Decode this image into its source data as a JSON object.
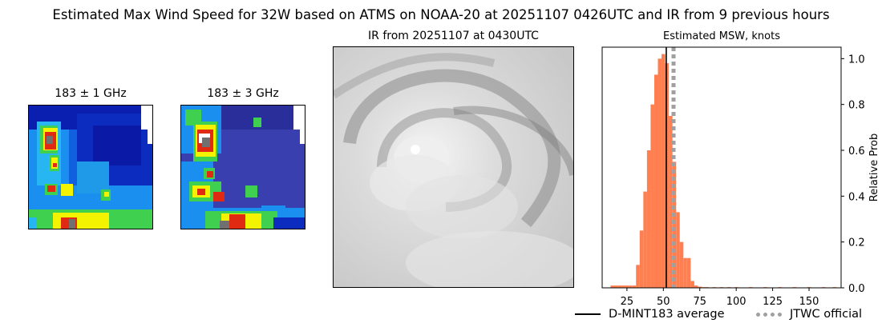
{
  "figure": {
    "title": "Estimated Max Wind Speed for 32W based on ATMS on NOAA-20 at 20251107 0426UTC and IR from 9 previous hours"
  },
  "panels": {
    "mw1": {
      "title": "183 ± 1 GHz"
    },
    "mw2": {
      "title": "183 ± 3 GHz"
    },
    "ir": {
      "title": "IR from 20251107 at 0430UTC"
    }
  },
  "chart_data": {
    "type": "bar",
    "title": "Estimated MSW, knots",
    "xlabel": "",
    "ylabel": "Relative Prob",
    "xlim": [
      8,
      172
    ],
    "ylim": [
      0,
      1.05
    ],
    "xticks": [
      25,
      50,
      75,
      100,
      125,
      150
    ],
    "yticks": [
      0.0,
      0.2,
      0.4,
      0.6,
      0.8,
      1.0
    ],
    "yticklabels": [
      "0.0",
      "0.2",
      "0.4",
      "0.6",
      "0.8",
      "1.0"
    ],
    "bin_width": 2.5,
    "bins": [
      {
        "x": 15,
        "y": 0.01
      },
      {
        "x": 17.5,
        "y": 0.01
      },
      {
        "x": 20,
        "y": 0.01
      },
      {
        "x": 22.5,
        "y": 0.01
      },
      {
        "x": 25,
        "y": 0.01
      },
      {
        "x": 27.5,
        "y": 0.01
      },
      {
        "x": 30,
        "y": 0.01
      },
      {
        "x": 32.5,
        "y": 0.1
      },
      {
        "x": 35,
        "y": 0.25
      },
      {
        "x": 37.5,
        "y": 0.42
      },
      {
        "x": 40,
        "y": 0.6
      },
      {
        "x": 42.5,
        "y": 0.8
      },
      {
        "x": 45,
        "y": 0.93
      },
      {
        "x": 47.5,
        "y": 1.0
      },
      {
        "x": 50,
        "y": 1.02
      },
      {
        "x": 52.5,
        "y": 0.98
      },
      {
        "x": 55,
        "y": 0.75
      },
      {
        "x": 57.5,
        "y": 0.55
      },
      {
        "x": 60,
        "y": 0.33
      },
      {
        "x": 62.5,
        "y": 0.2
      },
      {
        "x": 65,
        "y": 0.13
      },
      {
        "x": 67.5,
        "y": 0.13
      },
      {
        "x": 70,
        "y": 0.03
      },
      {
        "x": 72.5,
        "y": 0.01
      },
      {
        "x": 75,
        "y": 0.005
      },
      {
        "x": 77.5,
        "y": 0.003
      },
      {
        "x": 80,
        "y": 0.003
      },
      {
        "x": 85,
        "y": 0.003
      },
      {
        "x": 90,
        "y": 0.003
      },
      {
        "x": 95,
        "y": 0.003
      },
      {
        "x": 100,
        "y": 0.003
      },
      {
        "x": 110,
        "y": 0.003
      },
      {
        "x": 120,
        "y": 0.003
      },
      {
        "x": 130,
        "y": 0.003
      },
      {
        "x": 140,
        "y": 0.003
      },
      {
        "x": 150,
        "y": 0.003
      },
      {
        "x": 160,
        "y": 0.003
      },
      {
        "x": 167.5,
        "y": 0.003
      }
    ],
    "bar_color": "#ff7f50",
    "average": {
      "value": 52,
      "color": "#000000"
    },
    "official": {
      "value": 57,
      "color": "#a0a0a0"
    },
    "legend": {
      "placement": "bottom-right",
      "entries": [
        {
          "label": "D-MINT183 average",
          "style": "solid",
          "color": "#000000"
        },
        {
          "label": "JTWC official",
          "style": "dotted",
          "color": "#a0a0a0"
        }
      ]
    }
  }
}
